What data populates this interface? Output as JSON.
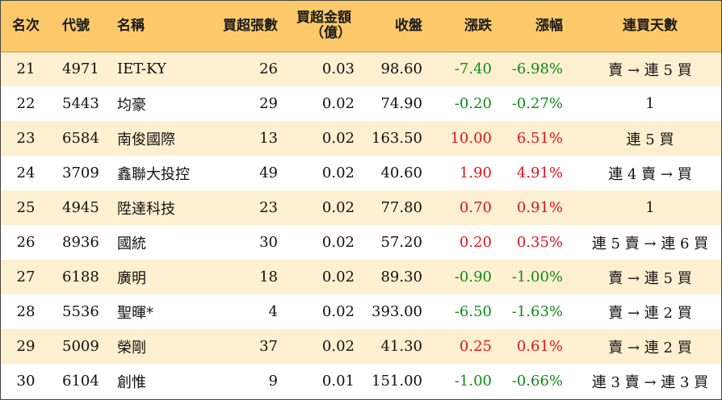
{
  "headers": {
    "rank": "名次",
    "code": "代號",
    "name": "名稱",
    "net_buy_lots": "買超張數",
    "net_buy_amount_line1": "買超金額",
    "net_buy_amount_line2": "（億）",
    "close": "收盤",
    "change": "漲跌",
    "change_pct": "漲幅",
    "streak": "連買天數"
  },
  "colors": {
    "header_bg": "#fbc96a",
    "row_alt_bg": "#fdf0d0",
    "up": "#e0141e",
    "down": "#138a1a"
  },
  "rows": [
    {
      "rank": "21",
      "code": "4971",
      "name": "IET-KY",
      "net_buy_lots": "26",
      "net_buy_amount": "0.03",
      "close": "98.60",
      "change": "-7.40",
      "change_pct": "-6.98%",
      "direction": "down",
      "streak": "賣 → 連 5 買"
    },
    {
      "rank": "22",
      "code": "5443",
      "name": "均豪",
      "net_buy_lots": "29",
      "net_buy_amount": "0.02",
      "close": "74.90",
      "change": "-0.20",
      "change_pct": "-0.27%",
      "direction": "down",
      "streak": "1"
    },
    {
      "rank": "23",
      "code": "6584",
      "name": "南俊國際",
      "net_buy_lots": "13",
      "net_buy_amount": "0.02",
      "close": "163.50",
      "change": "10.00",
      "change_pct": "6.51%",
      "direction": "up",
      "streak": "連 5 買"
    },
    {
      "rank": "24",
      "code": "3709",
      "name": "鑫聯大投控",
      "net_buy_lots": "49",
      "net_buy_amount": "0.02",
      "close": "40.60",
      "change": "1.90",
      "change_pct": "4.91%",
      "direction": "up",
      "streak": "連 4 賣 → 買"
    },
    {
      "rank": "25",
      "code": "4945",
      "name": "陞達科技",
      "net_buy_lots": "23",
      "net_buy_amount": "0.02",
      "close": "77.80",
      "change": "0.70",
      "change_pct": "0.91%",
      "direction": "up",
      "streak": "1"
    },
    {
      "rank": "26",
      "code": "8936",
      "name": "國統",
      "net_buy_lots": "30",
      "net_buy_amount": "0.02",
      "close": "57.20",
      "change": "0.20",
      "change_pct": "0.35%",
      "direction": "up",
      "streak": "連 5 賣 → 連 6 買"
    },
    {
      "rank": "27",
      "code": "6188",
      "name": "廣明",
      "net_buy_lots": "18",
      "net_buy_amount": "0.02",
      "close": "89.30",
      "change": "-0.90",
      "change_pct": "-1.00%",
      "direction": "down",
      "streak": "賣 → 連 5 買"
    },
    {
      "rank": "28",
      "code": "5536",
      "name": "聖暉*",
      "net_buy_lots": "4",
      "net_buy_amount": "0.02",
      "close": "393.00",
      "change": "-6.50",
      "change_pct": "-1.63%",
      "direction": "down",
      "streak": "賣 → 連 2 買"
    },
    {
      "rank": "29",
      "code": "5009",
      "name": "榮剛",
      "net_buy_lots": "37",
      "net_buy_amount": "0.02",
      "close": "41.30",
      "change": "0.25",
      "change_pct": "0.61%",
      "direction": "up",
      "streak": "賣 → 連 2 買"
    },
    {
      "rank": "30",
      "code": "6104",
      "name": "創惟",
      "net_buy_lots": "9",
      "net_buy_amount": "0.01",
      "close": "151.00",
      "change": "-1.00",
      "change_pct": "-0.66%",
      "direction": "down",
      "streak": "連 3 賣 → 連 3 買"
    }
  ]
}
